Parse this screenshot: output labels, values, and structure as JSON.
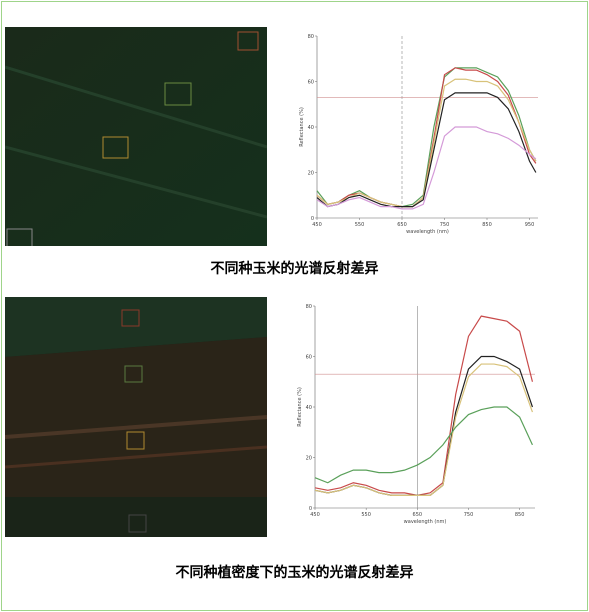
{
  "chart_data": [
    {
      "type": "line",
      "caption": "不同种玉米的光谱反射差异",
      "xlabel": "wavelength (nm)",
      "ylabel": "Reflectance (%)",
      "xlim": [
        450,
        970
      ],
      "xticks": [
        450,
        550,
        650,
        750,
        850,
        950
      ],
      "ylim": [
        0,
        80
      ],
      "yticks": [
        0,
        20,
        40,
        60,
        80
      ],
      "reference_lines": {
        "x": 650,
        "y": 53
      },
      "x": [
        450,
        475,
        500,
        525,
        550,
        575,
        600,
        625,
        650,
        675,
        700,
        725,
        750,
        775,
        800,
        825,
        850,
        875,
        900,
        925,
        950,
        965
      ],
      "series": [
        {
          "color": "#5aa05a",
          "values": [
            12,
            6,
            7,
            10,
            12,
            9,
            7,
            6,
            5,
            6,
            10,
            40,
            62,
            66,
            66,
            66,
            64,
            62,
            56,
            45,
            30,
            25
          ]
        },
        {
          "color": "#c84a4a",
          "values": [
            10,
            6,
            7,
            10,
            11,
            9,
            7,
            6,
            5,
            5,
            9,
            35,
            63,
            66,
            65,
            65,
            63,
            60,
            54,
            42,
            28,
            24
          ]
        },
        {
          "color": "#d8c27a",
          "values": [
            10,
            6,
            7,
            9,
            11,
            9,
            7,
            6,
            5,
            5,
            9,
            33,
            58,
            61,
            61,
            60,
            60,
            58,
            52,
            42,
            30,
            25
          ]
        },
        {
          "color": "#222222",
          "values": [
            9,
            5,
            6,
            9,
            10,
            8,
            6,
            5,
            5,
            5,
            8,
            30,
            52,
            55,
            55,
            55,
            55,
            53,
            48,
            38,
            25,
            20
          ]
        },
        {
          "color": "#d49ad8",
          "values": [
            8,
            5,
            6,
            8,
            9,
            7,
            5,
            5,
            4,
            4,
            6,
            20,
            36,
            40,
            40,
            40,
            38,
            37,
            35,
            32,
            28,
            26
          ]
        }
      ]
    },
    {
      "type": "line",
      "caption": "不同种植密度下的玉米的光谱反射差异",
      "xlabel": "wavelength (nm)",
      "ylabel": "Reflectance (%)",
      "xlim": [
        450,
        880
      ],
      "xticks": [
        450,
        550,
        650,
        750,
        850
      ],
      "ylim": [
        0,
        80
      ],
      "yticks": [
        0,
        20,
        40,
        60,
        80
      ],
      "reference_lines": {
        "x": 650,
        "y": 53
      },
      "x": [
        450,
        475,
        500,
        525,
        550,
        575,
        600,
        625,
        650,
        675,
        700,
        725,
        750,
        775,
        800,
        825,
        850,
        875
      ],
      "series": [
        {
          "color": "#c84a4a",
          "values": [
            8,
            7,
            8,
            10,
            9,
            7,
            6,
            6,
            5,
            6,
            10,
            45,
            68,
            76,
            75,
            74,
            70,
            50
          ]
        },
        {
          "color": "#222222",
          "values": [
            7,
            6,
            7,
            9,
            8,
            6,
            5,
            5,
            5,
            5,
            9,
            38,
            55,
            60,
            60,
            58,
            55,
            40
          ]
        },
        {
          "color": "#d8c27a",
          "values": [
            7,
            6,
            7,
            9,
            8,
            6,
            5,
            5,
            5,
            5,
            9,
            36,
            52,
            57,
            57,
            56,
            52,
            38
          ]
        },
        {
          "color": "#5aa05a",
          "values": [
            12,
            10,
            13,
            15,
            15,
            14,
            14,
            15,
            17,
            20,
            25,
            32,
            37,
            39,
            40,
            40,
            36,
            25
          ]
        }
      ]
    }
  ]
}
